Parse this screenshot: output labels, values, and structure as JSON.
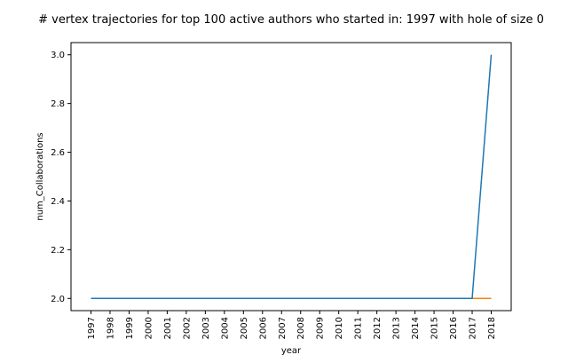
{
  "chart_data": {
    "type": "line",
    "title": "# vertex trajectories for top 100 active authors who started in: 1997 with hole of size 0",
    "xlabel": "year",
    "ylabel": "num_Collaborations",
    "categories": [
      "1997",
      "1998",
      "1999",
      "2000",
      "2001",
      "2002",
      "2003",
      "2004",
      "2005",
      "2006",
      "2007",
      "2008",
      "2009",
      "2010",
      "2011",
      "2012",
      "2013",
      "2014",
      "2015",
      "2016",
      "2017",
      "2018"
    ],
    "yticks": [
      "2.0",
      "2.2",
      "2.4",
      "2.6",
      "2.8",
      "3.0"
    ],
    "ylim": [
      1.95,
      3.05
    ],
    "grid": false,
    "series": [
      {
        "color": "#1f77b4",
        "values": [
          2,
          2,
          2,
          2,
          2,
          2,
          2,
          2,
          2,
          2,
          2,
          2,
          2,
          2,
          2,
          2,
          2,
          2,
          2,
          2,
          2,
          3
        ]
      },
      {
        "color": "#ff7f0e",
        "values": [
          2,
          2,
          2,
          2,
          2,
          2,
          2,
          2,
          2,
          2,
          2,
          2,
          2,
          2,
          2,
          2,
          2,
          2,
          2,
          2,
          2,
          2
        ]
      }
    ]
  }
}
